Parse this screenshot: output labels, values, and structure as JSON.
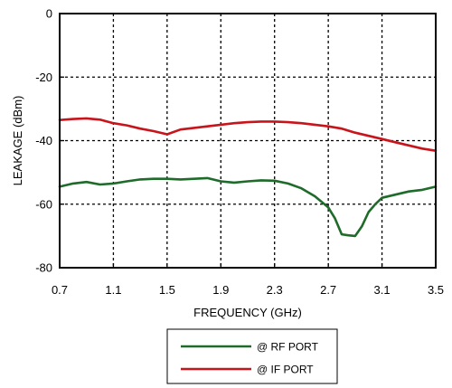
{
  "chart_data": {
    "type": "line",
    "xlabel": "FREQUENCY (GHz)",
    "ylabel": "LEAKAGE (dBm)",
    "xlim": [
      0.7,
      3.5
    ],
    "ylim": [
      -80,
      0
    ],
    "xticks": [
      0.7,
      1.1,
      1.5,
      1.9,
      2.3,
      2.7,
      3.1,
      3.5
    ],
    "xtick_labels": [
      "0.7",
      "1.1",
      "1.5",
      "1.9",
      "2.3",
      "2.7",
      "3.1",
      "3.5"
    ],
    "yticks": [
      0,
      -20,
      -40,
      -60,
      -80
    ],
    "ytick_labels": [
      "0",
      "-20",
      "-40",
      "-60",
      "-80"
    ],
    "grid": true,
    "legend_position": "bottom",
    "series": [
      {
        "name": "@ RF PORT",
        "color": "#1e6b2a",
        "x": [
          0.7,
          0.8,
          0.9,
          1.0,
          1.1,
          1.2,
          1.3,
          1.4,
          1.5,
          1.6,
          1.7,
          1.8,
          1.9,
          2.0,
          2.1,
          2.2,
          2.3,
          2.4,
          2.5,
          2.6,
          2.7,
          2.75,
          2.8,
          2.85,
          2.9,
          2.95,
          3.0,
          3.05,
          3.1,
          3.2,
          3.3,
          3.4,
          3.5
        ],
        "y": [
          -54.5,
          -53.5,
          -53,
          -53.8,
          -53.5,
          -52.8,
          -52.2,
          -52,
          -52,
          -52.2,
          -52,
          -51.8,
          -52.8,
          -53.2,
          -52.8,
          -52.5,
          -52.6,
          -53.5,
          -55,
          -57.5,
          -61,
          -64.5,
          -69.5,
          -69.8,
          -70,
          -67,
          -62.5,
          -60,
          -58,
          -57,
          -56,
          -55.5,
          -54.5
        ]
      },
      {
        "name": "@ IF PORT",
        "color": "#c8141b",
        "x": [
          0.7,
          0.8,
          0.9,
          1.0,
          1.1,
          1.2,
          1.3,
          1.4,
          1.5,
          1.6,
          1.7,
          1.8,
          1.9,
          2.0,
          2.1,
          2.2,
          2.3,
          2.4,
          2.5,
          2.6,
          2.7,
          2.8,
          2.9,
          3.0,
          3.1,
          3.2,
          3.3,
          3.4,
          3.5
        ],
        "y": [
          -33.5,
          -33.2,
          -33,
          -33.4,
          -34.5,
          -35.2,
          -36.2,
          -37,
          -38,
          -36.5,
          -36,
          -35.5,
          -35,
          -34.5,
          -34.2,
          -34,
          -34,
          -34.2,
          -34.5,
          -35,
          -35.5,
          -36.2,
          -37.5,
          -38.5,
          -39.5,
          -40.5,
          -41.5,
          -42.5,
          -43.2
        ]
      }
    ]
  }
}
